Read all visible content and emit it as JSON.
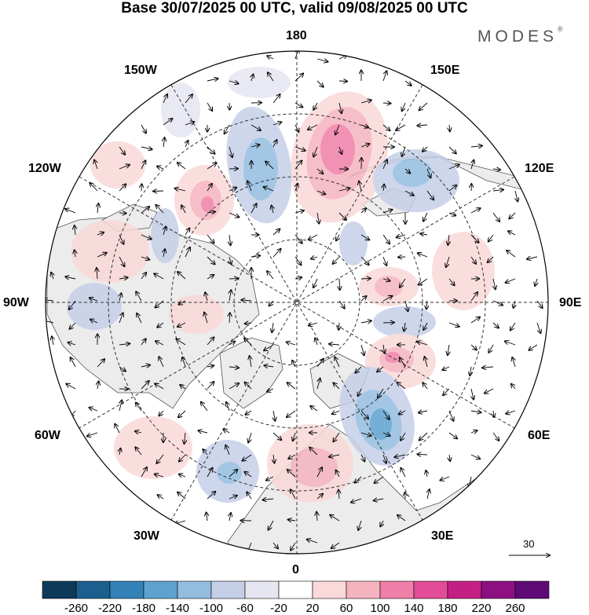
{
  "title": "Base 30/07/2025 00 UTC, valid 09/08/2025 00 UTC",
  "logo": "MODES",
  "logo_mark": "®",
  "longitude_labels": {
    "top": "180",
    "top_right": "150E",
    "right_upper": "120E",
    "right": "90E",
    "right_lower": "60E",
    "bottom_right": "30E",
    "bottom": "0",
    "bottom_left": "30W",
    "left_lower": "60W",
    "left": "90W",
    "left_upper": "120W",
    "top_left": "150W"
  },
  "vector_scale": {
    "label": "30"
  },
  "colorbar": {
    "ticks": [
      "-260",
      "-220",
      "-180",
      "-140",
      "-100",
      "-60",
      "-20",
      "20",
      "60",
      "100",
      "140",
      "180",
      "220",
      "260"
    ],
    "colors": [
      "#0e3a5a",
      "#1b5f8e",
      "#3282b8",
      "#5ea2cf",
      "#93bde0",
      "#c5cfe8",
      "#e6e6f2",
      "#ffffff",
      "#fad9d9",
      "#f5b3c0",
      "#ef7fa8",
      "#e24c98",
      "#c42084",
      "#8e0f82",
      "#5e0a76"
    ]
  },
  "colors": {
    "land": "#ececec",
    "positive_anomaly": "#f3b7c2",
    "negative_anomaly": "#a8b8dd",
    "strong_positive": "#ea6aa2",
    "strong_negative": "#4f8ec6"
  }
}
